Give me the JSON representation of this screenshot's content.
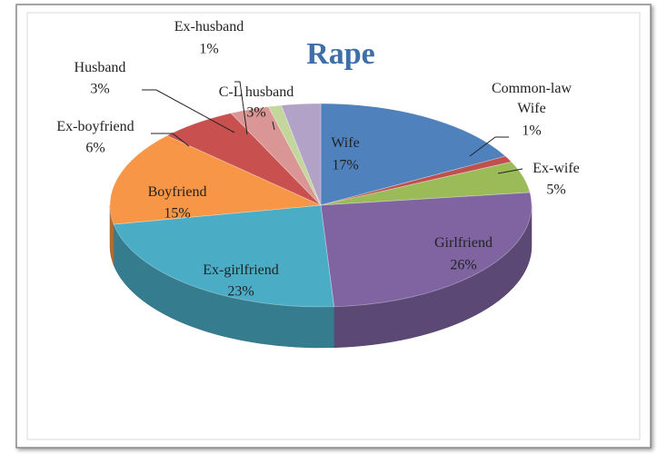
{
  "chart_data": {
    "type": "pie3d",
    "title": "Rape",
    "categories": [
      "Wife",
      "Common-law Wife",
      "Ex-wife",
      "Girlfriend",
      "Ex-girlfriend",
      "Boyfriend",
      "Ex-boyfriend",
      "Husband",
      "Ex-husband",
      "C-L husband"
    ],
    "values": [
      17,
      1,
      5,
      26,
      23,
      15,
      6,
      3,
      1,
      3
    ],
    "value_labels": [
      "17%",
      "1%",
      "5%",
      "26%",
      "23%",
      "15%",
      "6%",
      "3%",
      "1%",
      "3%"
    ],
    "colors": [
      "#4f81bd",
      "#c0504d",
      "#9bbb59",
      "#8064a2",
      "#4bacc6",
      "#f79646",
      "#c8504e",
      "#d99694",
      "#c3d69b",
      "#b3a2c7"
    ]
  }
}
